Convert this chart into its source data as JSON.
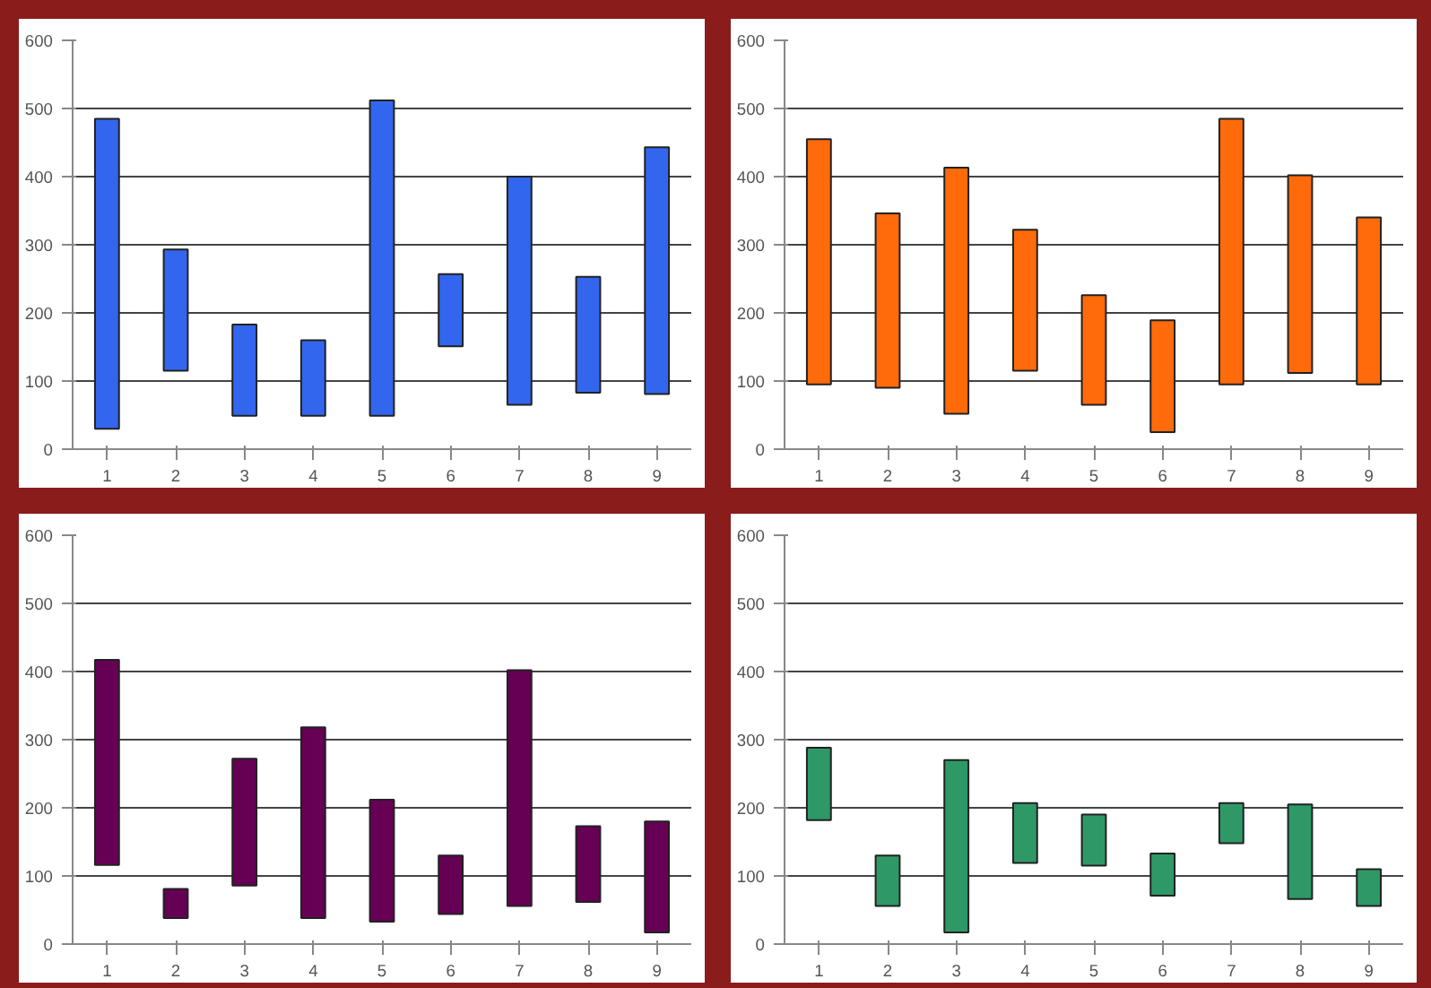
{
  "chart_data": [
    {
      "type": "bar",
      "categories": [
        "1",
        "2",
        "3",
        "4",
        "5",
        "6",
        "7",
        "8",
        "9"
      ],
      "base": [
        30,
        115,
        49,
        49,
        49,
        151,
        65,
        83,
        81
      ],
      "values": [
        455,
        178,
        134,
        111,
        463,
        106,
        335,
        170,
        362
      ],
      "color": "#3366ee",
      "ylim": [
        0,
        600
      ],
      "yticks": [
        0,
        100,
        200,
        300,
        400,
        500,
        600
      ],
      "grid": "y"
    },
    {
      "type": "bar",
      "categories": [
        "1",
        "2",
        "3",
        "4",
        "5",
        "6",
        "7",
        "8",
        "9"
      ],
      "base": [
        95,
        90,
        52,
        115,
        65,
        25,
        95,
        112,
        95
      ],
      "values": [
        360,
        256,
        361,
        207,
        161,
        164,
        390,
        290,
        245
      ],
      "color": "#ff6a0a",
      "ylim": [
        0,
        600
      ],
      "yticks": [
        0,
        100,
        200,
        300,
        400,
        500,
        600
      ],
      "grid": "y"
    },
    {
      "type": "bar",
      "categories": [
        "1",
        "2",
        "3",
        "4",
        "5",
        "6",
        "7",
        "8",
        "9"
      ],
      "base": [
        116,
        38,
        86,
        38,
        33,
        44,
        56,
        62,
        17
      ],
      "values": [
        301,
        43,
        186,
        280,
        179,
        86,
        346,
        111,
        163
      ],
      "color": "#660055",
      "ylim": [
        0,
        600
      ],
      "yticks": [
        0,
        100,
        200,
        300,
        400,
        500,
        600
      ],
      "grid": "y"
    },
    {
      "type": "bar",
      "categories": [
        "1",
        "2",
        "3",
        "4",
        "5",
        "6",
        "7",
        "8",
        "9"
      ],
      "base": [
        182,
        56,
        17,
        119,
        115,
        71,
        148,
        66,
        56
      ],
      "values": [
        106,
        74,
        253,
        88,
        75,
        62,
        59,
        139,
        54
      ],
      "color": "#2e9966",
      "ylim": [
        0,
        600
      ],
      "yticks": [
        0,
        100,
        200,
        300,
        400,
        500,
        600
      ],
      "grid": "y"
    }
  ]
}
